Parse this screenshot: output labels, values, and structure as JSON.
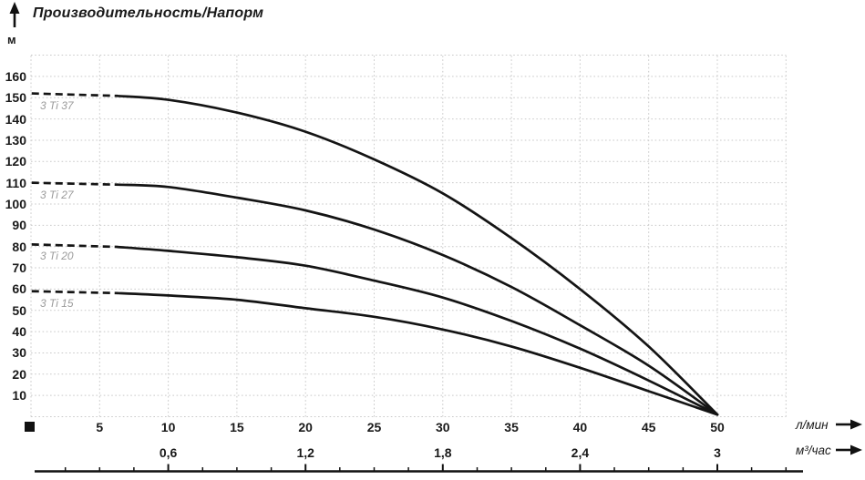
{
  "title": "Производительность/Напорм",
  "y_unit": "м",
  "axis1_unit": "л/мин",
  "axis2_unit": "м³/час",
  "colors": {
    "curve": "#141414",
    "grid": "#c9c9c9",
    "text": "#1a1a1a",
    "model_label": "#9b9b9b"
  },
  "chart_data": {
    "type": "line",
    "title": "Производительность/Напорм",
    "xlabel": "л/мин",
    "xlabel_secondary": "м³/час",
    "ylabel": "м",
    "xlim": [
      0,
      55
    ],
    "ylim": [
      0,
      170
    ],
    "grid": "dotted",
    "x": [
      0,
      5,
      10,
      15,
      20,
      25,
      30,
      35,
      40,
      45,
      50
    ],
    "x_tick_labels": [
      "5",
      "10",
      "15",
      "20",
      "25",
      "30",
      "35",
      "40",
      "45",
      "50"
    ],
    "x_tick_values": [
      5,
      10,
      15,
      20,
      25,
      30,
      35,
      40,
      45,
      50
    ],
    "x2_tick_labels": [
      "0,6",
      "1,2",
      "1,8",
      "2,4",
      "3"
    ],
    "x2_tick_values": [
      10,
      20,
      30,
      40,
      50
    ],
    "y_tick_values": [
      10,
      20,
      30,
      40,
      50,
      60,
      70,
      80,
      90,
      100,
      110,
      120,
      130,
      140,
      150,
      160
    ],
    "series": [
      {
        "name": "3 Ti 37",
        "dashed_until_x": 6.3,
        "values": [
          152,
          151.5,
          149,
          143,
          134,
          121,
          105,
          84,
          60,
          33,
          1
        ]
      },
      {
        "name": "3 Ti 27",
        "dashed_until_x": 6.3,
        "values": [
          110,
          109.5,
          108,
          103,
          97,
          88,
          76,
          61,
          43,
          24,
          1
        ]
      },
      {
        "name": "3 Ti 20",
        "dashed_until_x": 6.3,
        "values": [
          81,
          80.5,
          78,
          75,
          71,
          64,
          56,
          45,
          32,
          17,
          1
        ]
      },
      {
        "name": "3 Ti 15",
        "dashed_until_x": 6.3,
        "values": [
          59,
          58.5,
          57,
          55,
          51,
          47,
          41,
          33,
          23,
          12,
          1
        ]
      }
    ],
    "ruler": {
      "minor_step_m3h": 0.15,
      "major_labels": [
        "0,6",
        "1,2",
        "1,8",
        "2,4",
        "3"
      ]
    }
  }
}
